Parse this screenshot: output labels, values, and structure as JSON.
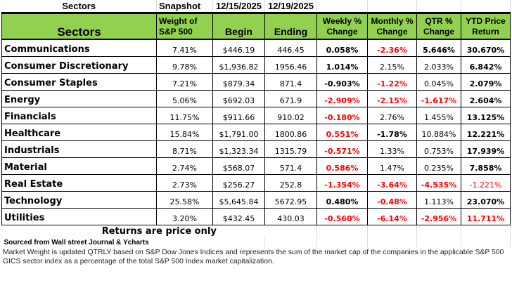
{
  "top": {
    "title": "Sectors",
    "snapshot": "Snapshot",
    "begin_date": "12/15/2025",
    "end_date": "12/19/2025"
  },
  "headers": [
    "Sectors",
    "Weight of S&P 500",
    "Begin",
    "Ending",
    "Weekly % Change",
    "Monthly % Change",
    "QTR % Change",
    "YTD Price Return"
  ],
  "rows": [
    {
      "sector": "Communications",
      "weight": "7.41%",
      "begin": "$446.19",
      "ending": "446.45",
      "weekly": "0.058%",
      "monthly": "-2.36%",
      "qtr": "5.646%",
      "ytd": "30.670%"
    },
    {
      "sector": "Consumer Discretionary",
      "weight": "9.78%",
      "begin": "$1,936.82",
      "ending": "1956.46",
      "weekly": "1.014%",
      "monthly": "2.15%",
      "qtr": "2.033%",
      "ytd": "6.842%"
    },
    {
      "sector": "Consumer Staples",
      "weight": "7.21%",
      "begin": "$879.34",
      "ending": "871.4",
      "weekly": "-0.903%",
      "monthly": "-1.22%",
      "qtr": "0.045%",
      "ytd": "2.079%"
    },
    {
      "sector": "Energy",
      "weight": "5.06%",
      "begin": "$692.03",
      "ending": "671.9",
      "weekly": "-2.909%",
      "monthly": "-2.15%",
      "qtr": "-1.617%",
      "ytd": "2.604%"
    },
    {
      "sector": "Financials",
      "weight": "11.75%",
      "begin": "$911.66",
      "ending": "910.02",
      "weekly": "-0.180%",
      "monthly": "2.76%",
      "qtr": "1.455%",
      "ytd": "13.125%"
    },
    {
      "sector": "Healthcare",
      "weight": "15.84%",
      "begin": "$1,791.00",
      "ending": "1800.86",
      "weekly": "0.551%",
      "monthly": "-1.78%",
      "qtr": "10.884%",
      "ytd": "12.221%"
    },
    {
      "sector": "Industrials",
      "weight": "8.71%",
      "begin": "$1,323.34",
      "ending": "1315.79",
      "weekly": "-0.571%",
      "monthly": "1.33%",
      "qtr": "0.753%",
      "ytd": "17.939%"
    },
    {
      "sector": "Material",
      "weight": "2.74%",
      "begin": "$568.07",
      "ending": "571.4",
      "weekly": "0.586%",
      "monthly": "1.47%",
      "qtr": "0.235%",
      "ytd": "7.858%"
    },
    {
      "sector": "Real Estate",
      "weight": "2.73%",
      "begin": "$256.27",
      "ending": "252.8",
      "weekly": "-1.354%",
      "monthly": "-3.64%",
      "qtr": "-4.535%",
      "ytd": "-1.221%"
    },
    {
      "sector": "Technology",
      "weight": "25.58%",
      "begin": "$5,645.84",
      "ending": "5672.95",
      "weekly": "0.480%",
      "monthly": "-0.48%",
      "qtr": "1.113%",
      "ytd": "23.070%"
    },
    {
      "sector": "Utilities",
      "weight": "3.20%",
      "begin": "$432.45",
      "ending": "430.03",
      "weekly": "-0.560%",
      "monthly": "-6.14%",
      "qtr": "-2.956%",
      "ytd": "11.711%"
    }
  ],
  "styles": {
    "weekly": [
      "bk",
      "bk",
      "bk",
      "br",
      "br",
      "br",
      "br",
      "br",
      "br",
      "bk",
      "br"
    ],
    "monthly": [
      "br",
      "n",
      "br",
      "br",
      "n",
      "bk",
      "n",
      "n",
      "br",
      "br",
      "br"
    ],
    "qtr": [
      "bk",
      "n",
      "n",
      "br",
      "n",
      "n",
      "n",
      "n",
      "br",
      "n",
      "br"
    ],
    "ytd": [
      "bk",
      "bk",
      "bk",
      "bk",
      "bk",
      "bk",
      "bk",
      "bk",
      "nr",
      "bk",
      "br"
    ]
  },
  "colors": {
    "header_bg": "#92D050",
    "negative": "#FF0000"
  },
  "footer": {
    "returns_note": "Returns are price only",
    "source": "Sourced from Wall street Journal & Ycharts",
    "weight_note": "Market Weight is updated QTRLY based on S&P Dow Jones Indices and represents the sum of the market cap of the companies in the applicable S&P 500 GICS sector index as a percentage of the total S&P 500 Index market capitalization."
  }
}
